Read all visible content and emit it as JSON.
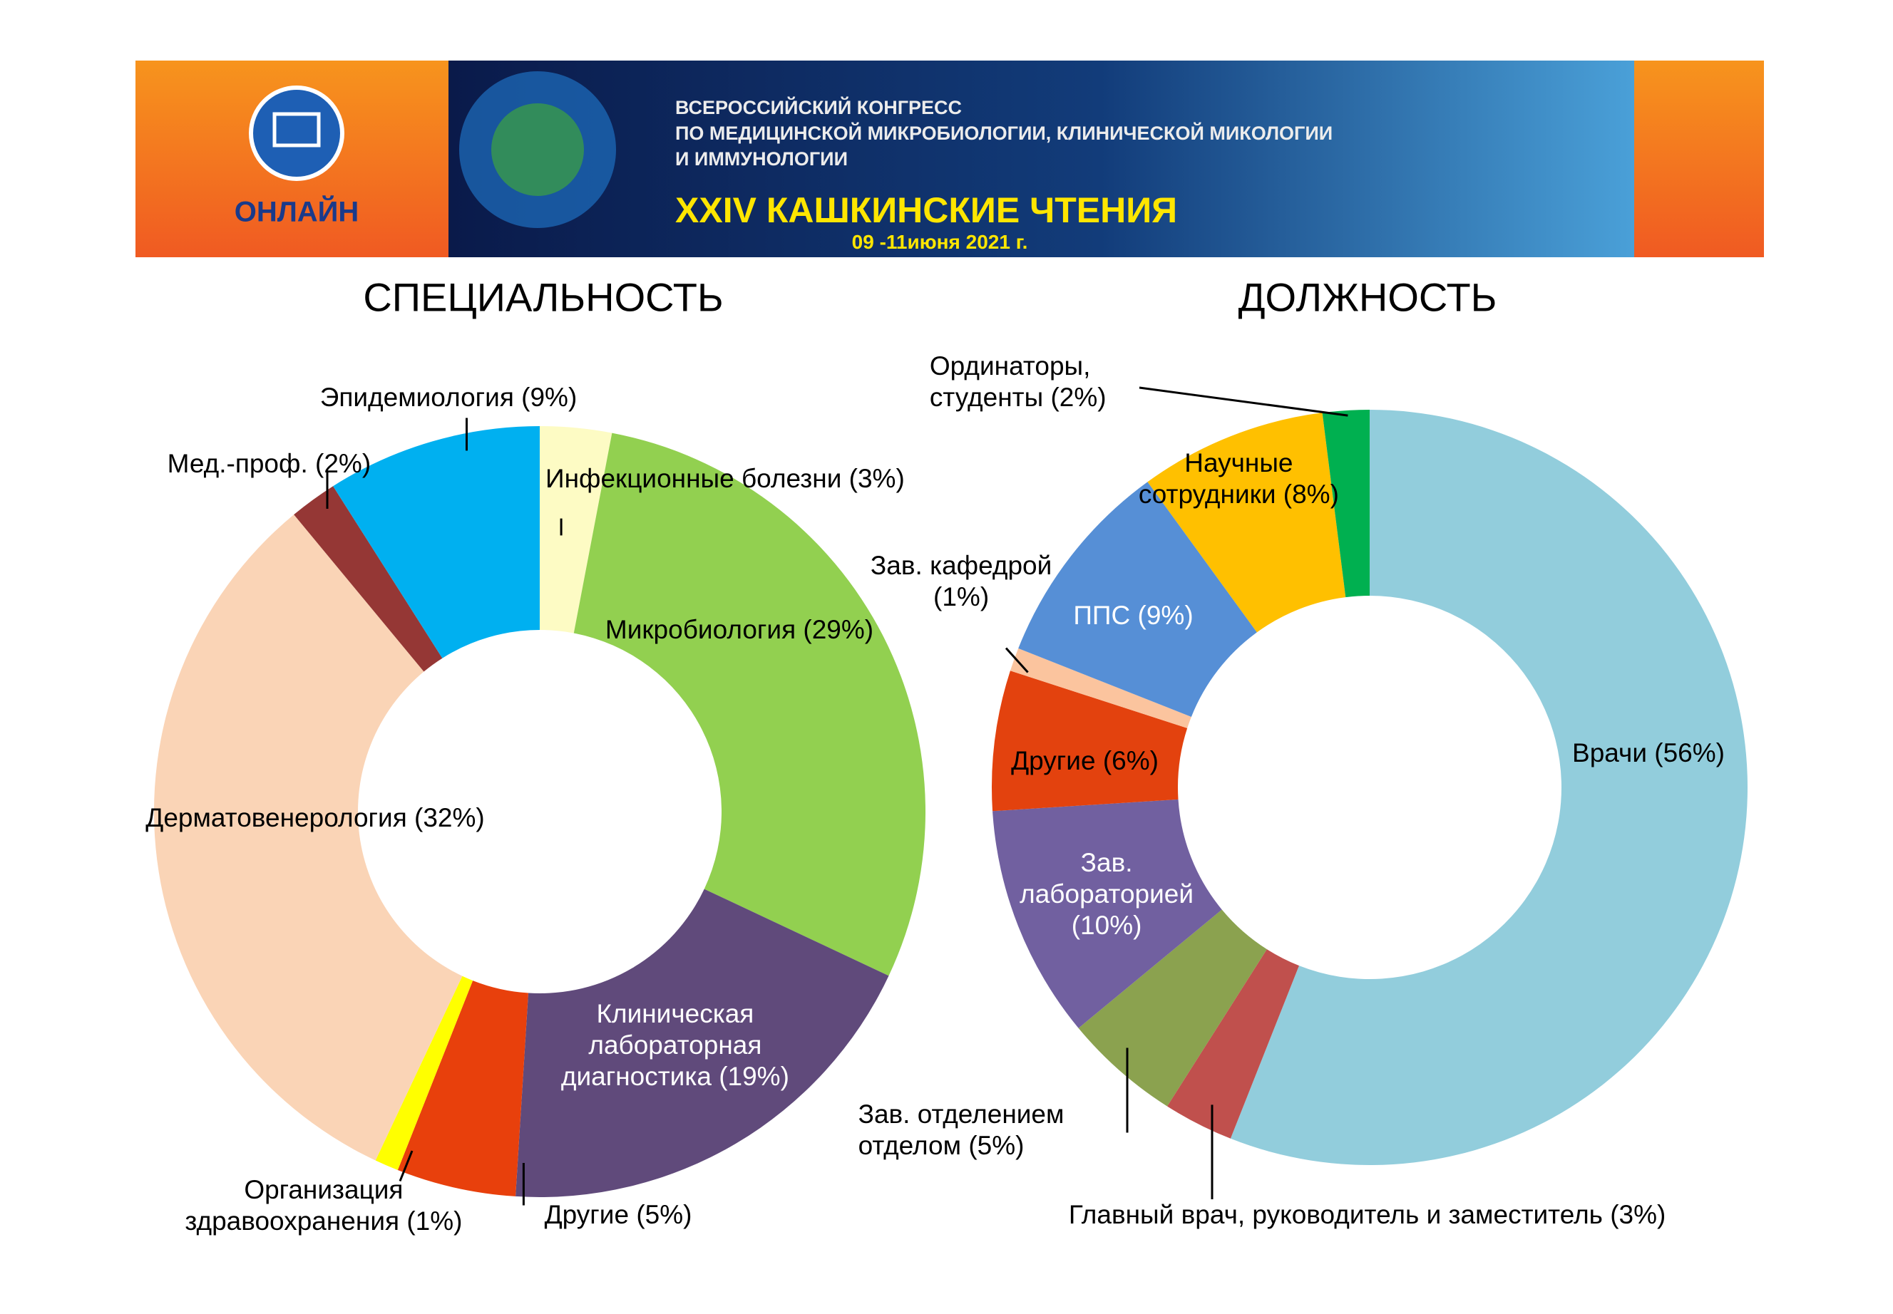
{
  "banner": {
    "online": "ОНЛАЙН",
    "congress": [
      "ВСЕРОССИЙСКИЙ КОНГРЕСС",
      "ПО МЕДИЦИНСКОЙ МИКРОБИОЛОГИИ, КЛИНИЧЕСКОЙ МИКОЛОГИИ",
      "И ИММУНОЛОГИИ"
    ],
    "event": "XXIV КАШКИНСКИЕ ЧТЕНИЯ",
    "dates": "09 -11июня 2021 г."
  },
  "chart_data": [
    {
      "type": "donut",
      "title": "СПЕЦИАЛЬНОСТЬ",
      "categories": [
        "Инфекционные болезни",
        "Микробиология",
        "Клиническая лабораторная диагностика",
        "Другие",
        "Организация здравоохранения",
        "Дерматовенерология",
        "Мед.-проф.",
        "Эпидемиология"
      ],
      "values": [
        3,
        29,
        19,
        5,
        1,
        32,
        2,
        9
      ],
      "value_labels": [
        "(3%)",
        "(29%)",
        "(19%)",
        "(5%)",
        "(1%)",
        "(32%)",
        "(2%)",
        "(9%)"
      ],
      "colors": [
        "#fdfbc4",
        "#92d050",
        "#604a7b",
        "#e8400c",
        "#ffff00",
        "#fad4b6",
        "#953735",
        "#00b0f0"
      ]
    },
    {
      "type": "donut",
      "title": "ДОЛЖНОСТЬ",
      "categories": [
        "Врачи",
        "Главный врач, руководитель и заместитель",
        "Зав. отделением отделом",
        "Зав. лабораторией",
        "Другие",
        "Зав. кафедрой",
        "ППС",
        "Научные сотрудники",
        "Ординаторы, студенты"
      ],
      "values": [
        56,
        3,
        5,
        10,
        6,
        1,
        9,
        8,
        2
      ],
      "value_labels": [
        "(56%)",
        "(3%)",
        "(5%)",
        "(10%)",
        "(6%)",
        "(1%)",
        "(9%)",
        "(8%)",
        "(2%)"
      ],
      "colors": [
        "#92cddc",
        "#c0504d",
        "#8ba24f",
        "#7160a0",
        "#e3420e",
        "#fbc49e",
        "#568fd6",
        "#ffc000",
        "#00b050"
      ]
    }
  ]
}
